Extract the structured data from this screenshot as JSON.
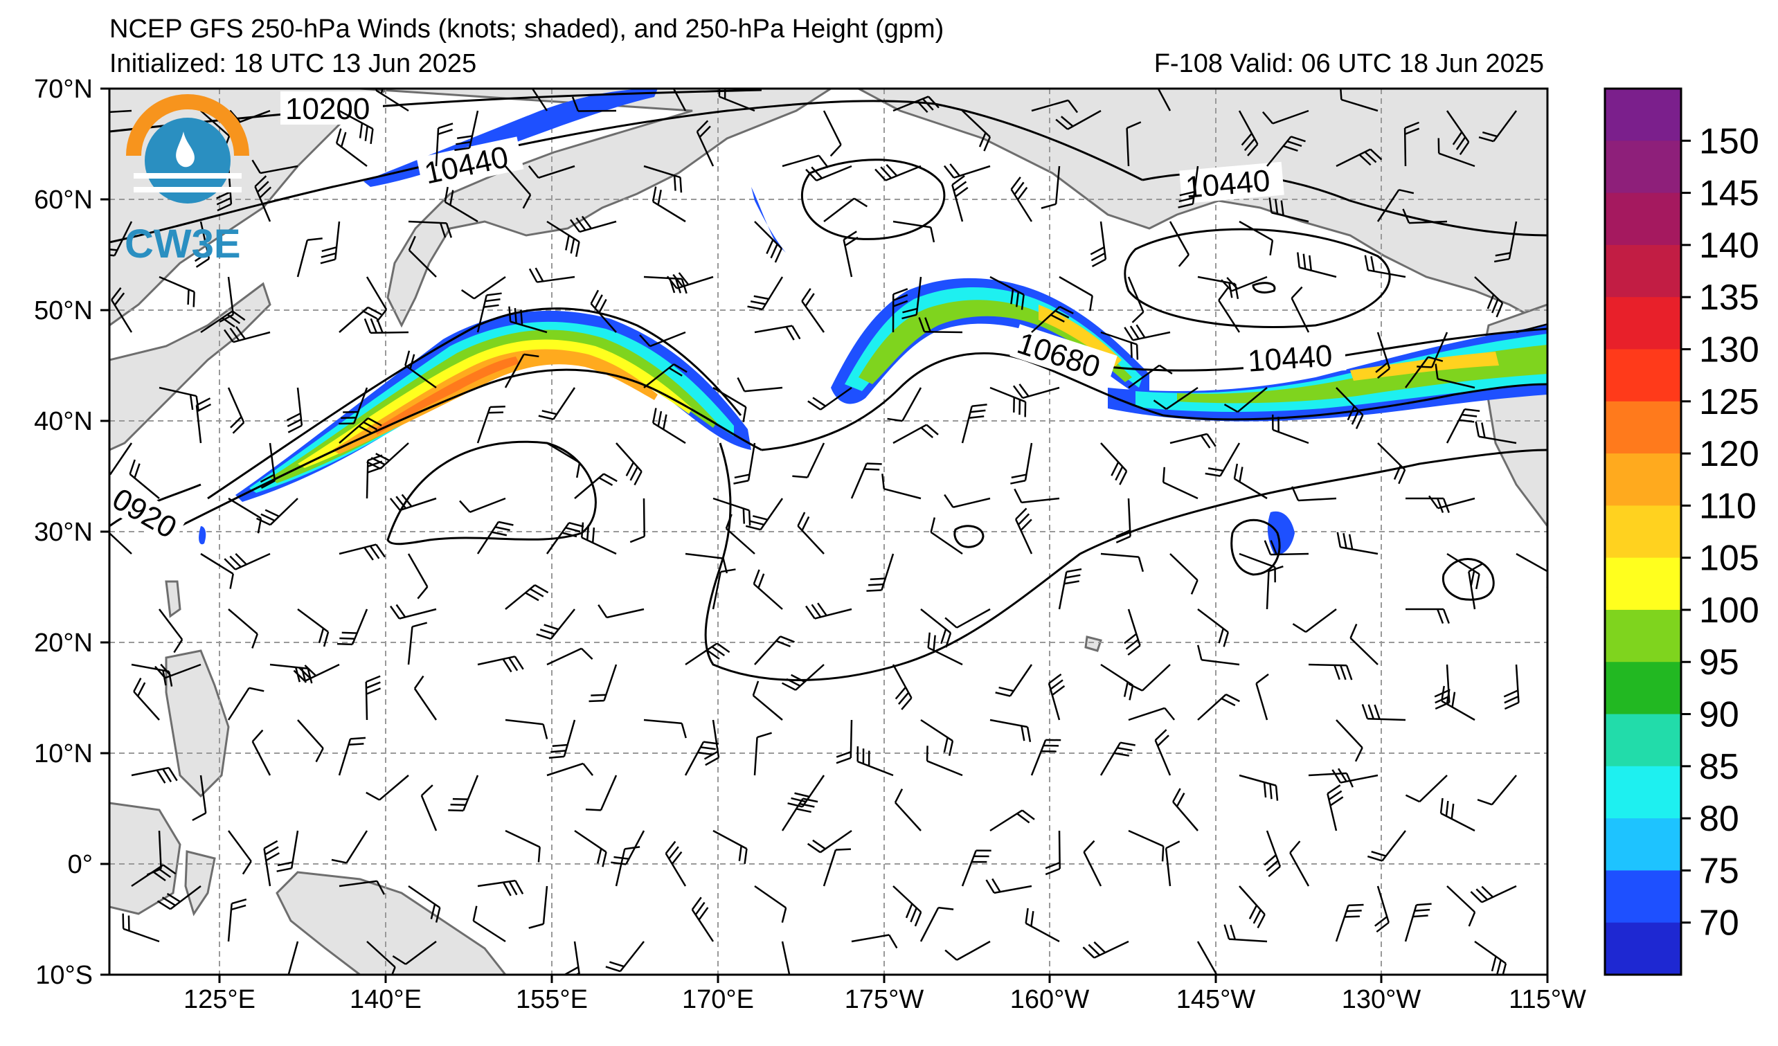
{
  "title": {
    "line1": "NCEP GFS 250-hPa Winds (knots; shaded), and 250-hPa Height (gpm)",
    "line2": "Initialized: 18 UTC 13 Jun 2025",
    "valid": "F-108  Valid: 06 UTC 18 Jun 2025"
  },
  "logo": {
    "text": "CW3E",
    "color_orange": "#f7941d",
    "color_blue": "#2a8fc1"
  },
  "lat_labels": [
    "70°N",
    "60°N",
    "50°N",
    "40°N",
    "30°N",
    "20°N",
    "10°N",
    "0°",
    "10°S"
  ],
  "lon_labels": [
    "125°E",
    "140°E",
    "155°E",
    "170°E",
    "175°W",
    "160°W",
    "145°W",
    "130°W",
    "115°W"
  ],
  "contour_labels": [
    "10200",
    "10440",
    "10440",
    "10680",
    "10440",
    "0920"
  ],
  "colorbar": {
    "ticks": [
      "150",
      "145",
      "140",
      "135",
      "130",
      "125",
      "120",
      "110",
      "105",
      "100",
      "95",
      "90",
      "85",
      "80",
      "75",
      "70"
    ],
    "colors": [
      "#7b1f8c",
      "#8e1f7a",
      "#a5195f",
      "#c21d44",
      "#e8202a",
      "#ff3a1a",
      "#ff7a1c",
      "#ffaa1e",
      "#ffd21f",
      "#ffff1e",
      "#7fd41e",
      "#22b822",
      "#22dcaa",
      "#1ef0f0",
      "#1ec3ff",
      "#1e50ff",
      "#1e28d2"
    ]
  }
}
